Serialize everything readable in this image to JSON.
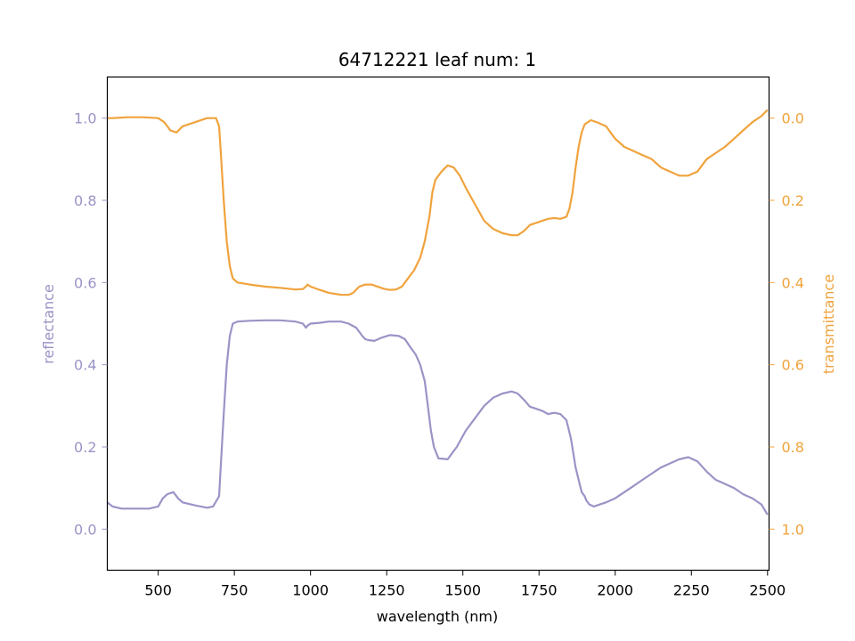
{
  "chart_data": {
    "type": "line",
    "title": "64712221 leaf num: 1",
    "xlabel": "wavelength (nm)",
    "ylabel_left": "reflectance",
    "ylabel_right": "transmittance",
    "xlim": [
      333,
      2505
    ],
    "ylim_left": [
      -0.1,
      1.1
    ],
    "ylim_right": [
      1.1,
      -0.1
    ],
    "right_axis_inverted": true,
    "x_ticks": [
      500,
      750,
      1000,
      1250,
      1500,
      1750,
      2000,
      2250,
      2500
    ],
    "y_ticks_left": [
      0.0,
      0.2,
      0.4,
      0.6,
      0.8,
      1.0
    ],
    "y_ticks_right": [
      0.0,
      0.2,
      0.4,
      0.6,
      0.8,
      1.0
    ],
    "x_tick_labels": [
      "500",
      "750",
      "1000",
      "1250",
      "1500",
      "1750",
      "2000",
      "2250",
      "2500"
    ],
    "y_tick_labels_left": [
      "0.0",
      "0.2",
      "0.4",
      "0.6",
      "0.8",
      "1.0"
    ],
    "y_tick_labels_right": [
      "0.0",
      "0.2",
      "0.4",
      "0.6",
      "0.8",
      "1.0"
    ],
    "grid": false,
    "colors": {
      "reflectance": "#9a94c6",
      "transmittance": "#f0a33d"
    },
    "series": [
      {
        "axis": "left",
        "x": [
          333,
          350,
          380,
          420,
          470,
          500,
          515,
          530,
          550,
          565,
          580,
          620,
          660,
          680,
          700,
          705,
          715,
          725,
          735,
          745,
          760,
          800,
          850,
          900,
          950,
          975,
          985,
          990,
          1000,
          1030,
          1060,
          1100,
          1125,
          1150,
          1170,
          1180,
          1190,
          1210,
          1230,
          1260,
          1290,
          1310,
          1330,
          1345,
          1360,
          1375,
          1385,
          1395,
          1405,
          1420,
          1450,
          1480,
          1510,
          1540,
          1570,
          1600,
          1630,
          1660,
          1680,
          1700,
          1720,
          1740,
          1760,
          1780,
          1800,
          1820,
          1840,
          1855,
          1870,
          1880,
          1890,
          1900,
          1905,
          1915,
          1930,
          1950,
          1970,
          2000,
          2030,
          2060,
          2090,
          2120,
          2150,
          2180,
          2210,
          2240,
          2270,
          2300,
          2330,
          2360,
          2390,
          2420,
          2450,
          2480,
          2500
        ],
        "y": [
          0.065,
          0.055,
          0.05,
          0.05,
          0.05,
          0.055,
          0.075,
          0.085,
          0.09,
          0.075,
          0.065,
          0.058,
          0.052,
          0.055,
          0.08,
          0.15,
          0.28,
          0.4,
          0.47,
          0.5,
          0.505,
          0.507,
          0.508,
          0.508,
          0.505,
          0.5,
          0.49,
          0.495,
          0.5,
          0.502,
          0.505,
          0.505,
          0.5,
          0.49,
          0.47,
          0.462,
          0.46,
          0.458,
          0.465,
          0.472,
          0.47,
          0.462,
          0.44,
          0.425,
          0.4,
          0.36,
          0.3,
          0.24,
          0.2,
          0.172,
          0.17,
          0.2,
          0.24,
          0.27,
          0.3,
          0.32,
          0.33,
          0.335,
          0.33,
          0.315,
          0.298,
          0.293,
          0.288,
          0.28,
          0.283,
          0.28,
          0.265,
          0.22,
          0.15,
          0.12,
          0.09,
          0.08,
          0.07,
          0.06,
          0.055,
          0.06,
          0.065,
          0.075,
          0.09,
          0.105,
          0.12,
          0.135,
          0.15,
          0.16,
          0.17,
          0.175,
          0.165,
          0.14,
          0.12,
          0.11,
          0.1,
          0.085,
          0.075,
          0.06,
          0.035
        ]
      },
      {
        "axis": "right",
        "x": [
          333,
          350,
          400,
          450,
          500,
          520,
          530,
          540,
          560,
          580,
          620,
          660,
          690,
          700,
          705,
          715,
          725,
          735,
          745,
          760,
          800,
          850,
          900,
          950,
          975,
          985,
          990,
          1000,
          1030,
          1060,
          1100,
          1125,
          1140,
          1160,
          1180,
          1200,
          1220,
          1240,
          1260,
          1280,
          1300,
          1320,
          1340,
          1360,
          1375,
          1390,
          1400,
          1410,
          1430,
          1450,
          1470,
          1490,
          1510,
          1540,
          1570,
          1600,
          1630,
          1660,
          1680,
          1700,
          1720,
          1740,
          1760,
          1780,
          1800,
          1820,
          1840,
          1850,
          1860,
          1870,
          1880,
          1890,
          1900,
          1910,
          1920,
          1940,
          1970,
          2000,
          2030,
          2060,
          2090,
          2120,
          2150,
          2180,
          2210,
          2240,
          2270,
          2300,
          2330,
          2360,
          2390,
          2420,
          2450,
          2480,
          2500
        ],
        "y": [
          0.0,
          0.0,
          -0.002,
          -0.002,
          0.0,
          0.01,
          0.02,
          0.03,
          0.035,
          0.02,
          0.01,
          0.0,
          0.0,
          0.02,
          0.08,
          0.2,
          0.3,
          0.36,
          0.39,
          0.4,
          0.405,
          0.41,
          0.413,
          0.417,
          0.416,
          0.41,
          0.405,
          0.41,
          0.418,
          0.425,
          0.43,
          0.43,
          0.425,
          0.41,
          0.405,
          0.405,
          0.41,
          0.415,
          0.418,
          0.417,
          0.41,
          0.39,
          0.37,
          0.34,
          0.3,
          0.24,
          0.18,
          0.15,
          0.13,
          0.115,
          0.12,
          0.14,
          0.17,
          0.21,
          0.25,
          0.27,
          0.28,
          0.285,
          0.285,
          0.275,
          0.26,
          0.255,
          0.25,
          0.245,
          0.243,
          0.245,
          0.24,
          0.22,
          0.18,
          0.12,
          0.07,
          0.035,
          0.015,
          0.01,
          0.005,
          0.01,
          0.02,
          0.05,
          0.07,
          0.08,
          0.09,
          0.1,
          0.12,
          0.13,
          0.14,
          0.14,
          0.13,
          0.1,
          0.085,
          0.07,
          0.05,
          0.03,
          0.01,
          -0.005,
          -0.02
        ]
      }
    ]
  }
}
